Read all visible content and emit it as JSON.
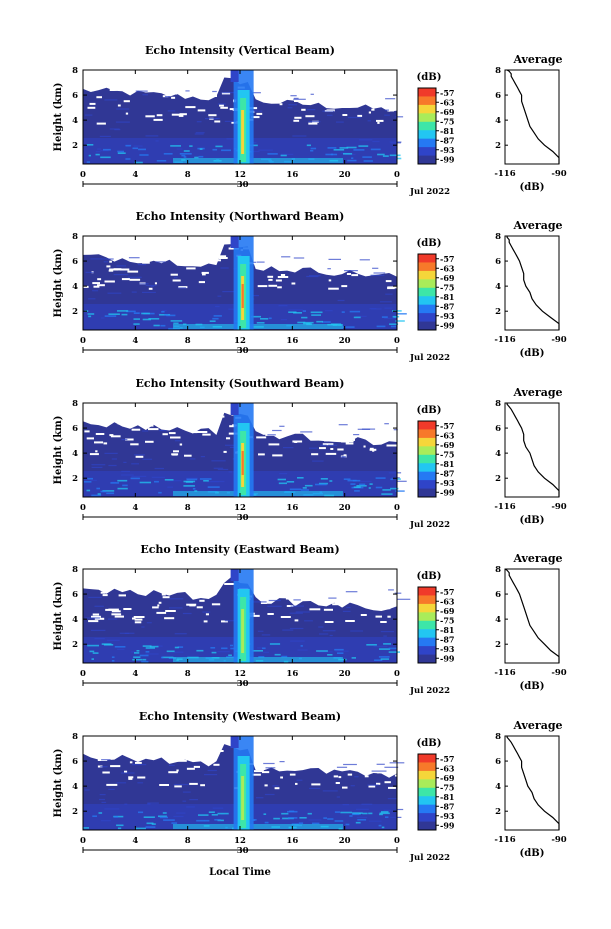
{
  "chart_data": [
    {
      "type": "heatmap",
      "title": "Echo Intensity (Vertical Beam)",
      "ylabel": "Height (km)",
      "xticks": [
        "0",
        "4",
        "8",
        "12",
        "16",
        "20",
        "0"
      ],
      "xlim": [
        0,
        24
      ],
      "yticks": [
        "2",
        "4",
        "6",
        "8"
      ],
      "ylim": [
        0.5,
        8
      ],
      "date_day": "30",
      "date_label": "Jul 2022",
      "colorbar": {
        "unit": "(dB)",
        "ticks": [
          "-57",
          "-63",
          "-69",
          "-75",
          "-81",
          "-87",
          "-93",
          "-99"
        ]
      },
      "profile": {
        "title": "Average",
        "xlabel": "(dB)",
        "xticks": [
          "-116",
          "-90"
        ],
        "yticks": [
          "2",
          "4",
          "6",
          "8"
        ],
        "x": [
          -87,
          -89,
          -93,
          -97,
          -100,
          -102,
          -104,
          -105,
          -106,
          -107,
          -108,
          -108,
          -109,
          -110,
          -111,
          -112,
          -113,
          -113,
          -114,
          -115
        ],
        "y": [
          0.5,
          1.0,
          1.5,
          2.0,
          2.5,
          3.0,
          3.5,
          4.0,
          4.5,
          5.0,
          5.5,
          6.0,
          6.3,
          6.6,
          6.9,
          7.2,
          7.5,
          7.7,
          7.9,
          8.0
        ]
      }
    },
    {
      "type": "heatmap",
      "title": "Echo Intensity (Northward Beam)",
      "ylabel": "Height (km)",
      "xticks": [
        "0",
        "4",
        "8",
        "12",
        "16",
        "20",
        "0"
      ],
      "xlim": [
        0,
        24
      ],
      "yticks": [
        "2",
        "4",
        "6",
        "8"
      ],
      "ylim": [
        0.5,
        8
      ],
      "date_day": "30",
      "date_label": "Jul 2022",
      "colorbar": {
        "unit": "(dB)",
        "ticks": [
          "-57",
          "-63",
          "-69",
          "-75",
          "-81",
          "-87",
          "-93",
          "-99"
        ]
      },
      "profile": {
        "title": "Average",
        "xlabel": "(dB)",
        "xticks": [
          "-116",
          "-90"
        ],
        "yticks": [
          "2",
          "4",
          "6",
          "8"
        ],
        "x": [
          -88,
          -90,
          -94,
          -98,
          -101,
          -103,
          -104,
          -106,
          -107,
          -107,
          -108,
          -109,
          -110,
          -111,
          -112,
          -113,
          -114,
          -114,
          -115,
          -115
        ],
        "y": [
          0.5,
          1.0,
          1.5,
          2.0,
          2.5,
          3.0,
          3.5,
          4.0,
          4.5,
          5.0,
          5.5,
          6.0,
          6.3,
          6.6,
          6.9,
          7.2,
          7.5,
          7.7,
          7.9,
          8.0
        ]
      }
    },
    {
      "type": "heatmap",
      "title": "Echo Intensity (Southward Beam)",
      "ylabel": "Height (km)",
      "xticks": [
        "0",
        "4",
        "8",
        "12",
        "16",
        "20",
        "0"
      ],
      "xlim": [
        0,
        24
      ],
      "yticks": [
        "2",
        "4",
        "6",
        "8"
      ],
      "ylim": [
        0.5,
        8
      ],
      "date_day": "30",
      "date_label": "Jul 2022",
      "colorbar": {
        "unit": "(dB)",
        "ticks": [
          "-57",
          "-63",
          "-69",
          "-75",
          "-81",
          "-87",
          "-93",
          "-99"
        ]
      },
      "profile": {
        "title": "Average",
        "xlabel": "(dB)",
        "xticks": [
          "-116",
          "-90"
        ],
        "yticks": [
          "2",
          "4",
          "6",
          "8"
        ],
        "x": [
          -88,
          -90,
          -93,
          -97,
          -100,
          -102,
          -103,
          -104,
          -106,
          -107,
          -107,
          -108,
          -109,
          -110,
          -111,
          -112,
          -113,
          -114,
          -115,
          -115
        ],
        "y": [
          0.5,
          1.0,
          1.5,
          2.0,
          2.5,
          3.0,
          3.5,
          4.0,
          4.5,
          5.0,
          5.5,
          6.0,
          6.3,
          6.6,
          6.9,
          7.2,
          7.5,
          7.7,
          7.9,
          8.0
        ]
      }
    },
    {
      "type": "heatmap",
      "title": "Echo Intensity (Eastward Beam)",
      "ylabel": "Height (km)",
      "xticks": [
        "0",
        "4",
        "8",
        "12",
        "16",
        "20",
        "0"
      ],
      "xlim": [
        0,
        24
      ],
      "yticks": [
        "2",
        "4",
        "6",
        "8"
      ],
      "ylim": [
        0.5,
        8
      ],
      "date_day": "30",
      "date_label": "Jul 2022",
      "colorbar": {
        "unit": "(dB)",
        "ticks": [
          "-57",
          "-63",
          "-69",
          "-75",
          "-81",
          "-87",
          "-93",
          "-99"
        ]
      },
      "profile": {
        "title": "Average",
        "xlabel": "(dB)",
        "xticks": [
          "-116",
          "-90"
        ],
        "yticks": [
          "2",
          "4",
          "6",
          "8"
        ],
        "x": [
          -88,
          -90,
          -94,
          -97,
          -100,
          -102,
          -104,
          -105,
          -106,
          -107,
          -108,
          -109,
          -110,
          -111,
          -112,
          -113,
          -114,
          -114,
          -115,
          -116
        ],
        "y": [
          0.5,
          1.0,
          1.5,
          2.0,
          2.5,
          3.0,
          3.5,
          4.0,
          4.5,
          5.0,
          5.5,
          6.0,
          6.3,
          6.6,
          6.9,
          7.2,
          7.5,
          7.7,
          7.9,
          8.0
        ]
      }
    },
    {
      "type": "heatmap",
      "title": "Echo Intensity (Westward Beam)",
      "ylabel": "Height (km)",
      "xticks": [
        "0",
        "4",
        "8",
        "12",
        "16",
        "20",
        "0"
      ],
      "xlim": [
        0,
        24
      ],
      "yticks": [
        "2",
        "4",
        "6",
        "8"
      ],
      "ylim": [
        0.5,
        8
      ],
      "date_day": "30",
      "date_label": "Jul 2022",
      "xlabel": "Local Time",
      "colorbar": {
        "unit": "(dB)",
        "ticks": [
          "-57",
          "-63",
          "-69",
          "-75",
          "-81",
          "-87",
          "-93",
          "-99"
        ]
      },
      "profile": {
        "title": "Average",
        "xlabel": "(dB)",
        "xticks": [
          "-116",
          "-90"
        ],
        "yticks": [
          "2",
          "4",
          "6",
          "8"
        ],
        "x": [
          -87,
          -89,
          -93,
          -97,
          -100,
          -102,
          -103,
          -105,
          -106,
          -107,
          -108,
          -108,
          -109,
          -110,
          -111,
          -112,
          -113,
          -114,
          -115,
          -115
        ],
        "y": [
          0.5,
          1.0,
          1.5,
          2.0,
          2.5,
          3.0,
          3.5,
          4.0,
          4.5,
          5.0,
          5.5,
          6.0,
          6.3,
          6.6,
          6.9,
          7.2,
          7.5,
          7.7,
          7.9,
          8.0
        ]
      }
    }
  ]
}
